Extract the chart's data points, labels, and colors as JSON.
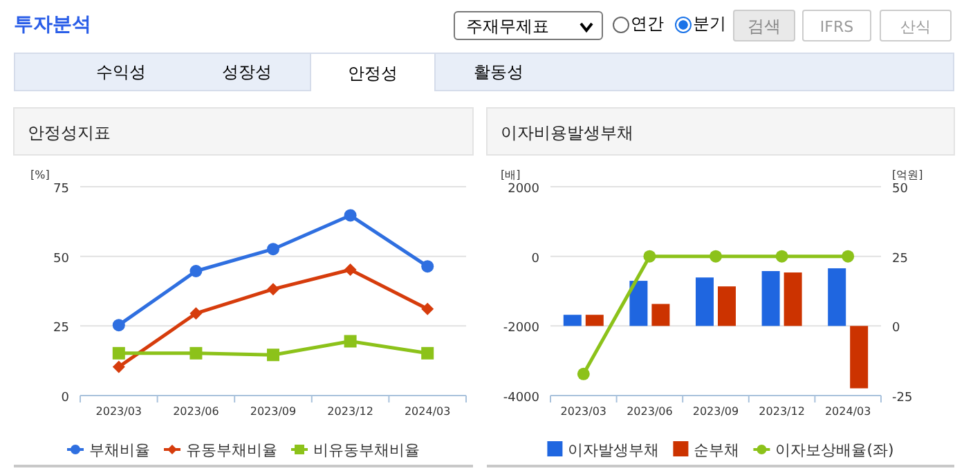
{
  "chart_data": [
    {
      "type": "line",
      "title": "안정성지표",
      "ylabel": "[%]",
      "annotations": [
        "투자분석",
        "주재무제표",
        "연간",
        "분기",
        "검색",
        "IFRS",
        "산식",
        "수익성",
        "성장성",
        "안정성",
        "활동성"
      ],
      "categories": [
        "2023/03",
        "2023/06",
        "2023/09",
        "2023/12",
        "2024/03"
      ],
      "series": [
        {
          "name": "부채비율",
          "color": "#2f6fe0",
          "marker": "circle",
          "values": [
            25.3,
            44.7,
            52.6,
            64.7,
            46.4
          ]
        },
        {
          "name": "유동부채비율",
          "color": "#d63c0c",
          "marker": "diamond",
          "values": [
            10.3,
            29.5,
            38.2,
            45.2,
            31.1
          ]
        },
        {
          "name": "비유동부채비율",
          "color": "#8cc21a",
          "marker": "square",
          "values": [
            15.2,
            15.2,
            14.6,
            19.5,
            15.2
          ]
        }
      ],
      "ylim": [
        0,
        75
      ],
      "yticks": [
        0,
        25,
        50,
        75
      ],
      "grid": "y",
      "legend": "bottom"
    },
    {
      "type": "bar",
      "title": "이자비용발생부채",
      "ylabel": "[배]",
      "y2label": "[억원]",
      "categories": [
        "2023/03",
        "2023/06",
        "2023/09",
        "2023/12",
        "2024/03"
      ],
      "series": [
        {
          "name": "이자발생부채",
          "color": "#1f66e0",
          "axis": "y2",
          "values": [
            4.0,
            16.2,
            17.4,
            19.7,
            20.7
          ]
        },
        {
          "name": "순부채",
          "color": "#cc3300",
          "axis": "y2",
          "values": [
            4.0,
            7.9,
            14.2,
            19.2,
            -22.4
          ]
        },
        {
          "name": "이자보상배율(좌)",
          "color": "#8cc21a",
          "type": "line",
          "marker": "circle",
          "values": [
            -3380,
            0,
            0,
            0,
            0
          ]
        }
      ],
      "ylim": [
        -4000,
        2000
      ],
      "yticks": [
        -4000,
        -2000,
        0,
        2000
      ],
      "y2lim": [
        -25,
        50
      ],
      "y2ticks": [
        -25,
        0,
        25,
        50
      ],
      "grid": "y",
      "legend": "bottom"
    }
  ]
}
